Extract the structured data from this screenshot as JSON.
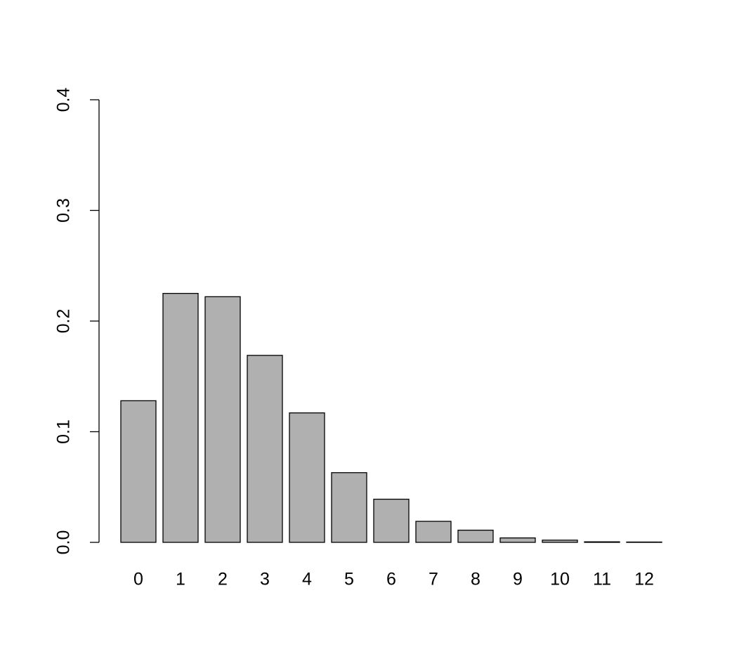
{
  "chart_data": {
    "type": "bar",
    "categories": [
      "0",
      "1",
      "2",
      "3",
      "4",
      "5",
      "6",
      "7",
      "8",
      "9",
      "10",
      "11",
      "12"
    ],
    "values": [
      0.128,
      0.225,
      0.222,
      0.169,
      0.117,
      0.063,
      0.039,
      0.019,
      0.011,
      0.004,
      0.002,
      0.0005,
      0.0003
    ],
    "color": "#b0b0b0",
    "ylim": [
      0,
      0.4
    ],
    "yticks": [
      {
        "value": 0,
        "label": "0.0"
      },
      0.1,
      0.2,
      0.3,
      0.4
    ]
  }
}
